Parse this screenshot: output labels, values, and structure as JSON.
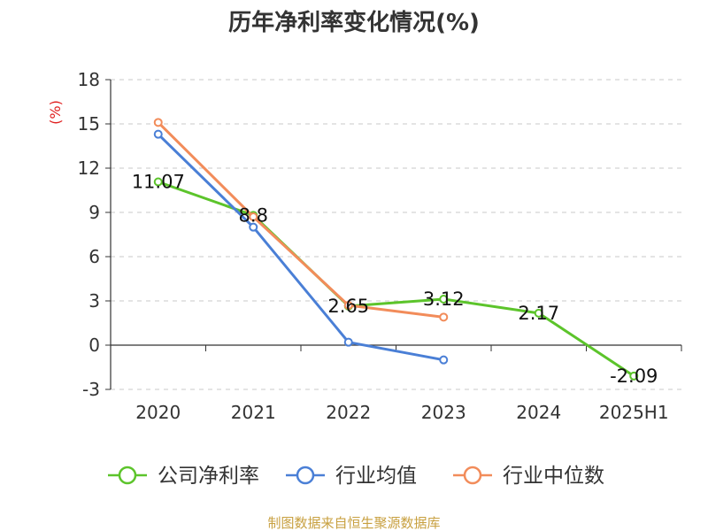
{
  "chart_data": {
    "type": "line",
    "title": "历年净利率变化情况(%)",
    "ylabel": "(%)",
    "xlabel": "",
    "categories": [
      "2020",
      "2021",
      "2022",
      "2023",
      "2024",
      "2025H1"
    ],
    "ylim": [
      -3,
      18
    ],
    "yticks": [
      18,
      15,
      12,
      9,
      6,
      3,
      0,
      -3
    ],
    "grid": true,
    "legend_position": "bottom",
    "series": [
      {
        "name": "公司净利率",
        "color": "#5cc42b",
        "values": [
          11.07,
          8.8,
          2.65,
          3.12,
          2.17,
          -2.09
        ],
        "labels": [
          "11.07",
          "8.8",
          "2.65",
          "3.12",
          "2.17",
          "-2.09"
        ]
      },
      {
        "name": "行业均值",
        "color": "#4a7fd6",
        "values": [
          14.3,
          8.0,
          0.2,
          -1.0,
          null,
          null
        ],
        "labels": []
      },
      {
        "name": "行业中位数",
        "color": "#f28c5a",
        "values": [
          15.1,
          8.7,
          2.7,
          1.9,
          null,
          null
        ],
        "labels": []
      }
    ]
  },
  "footer": "制图数据来自恒生聚源数据库"
}
